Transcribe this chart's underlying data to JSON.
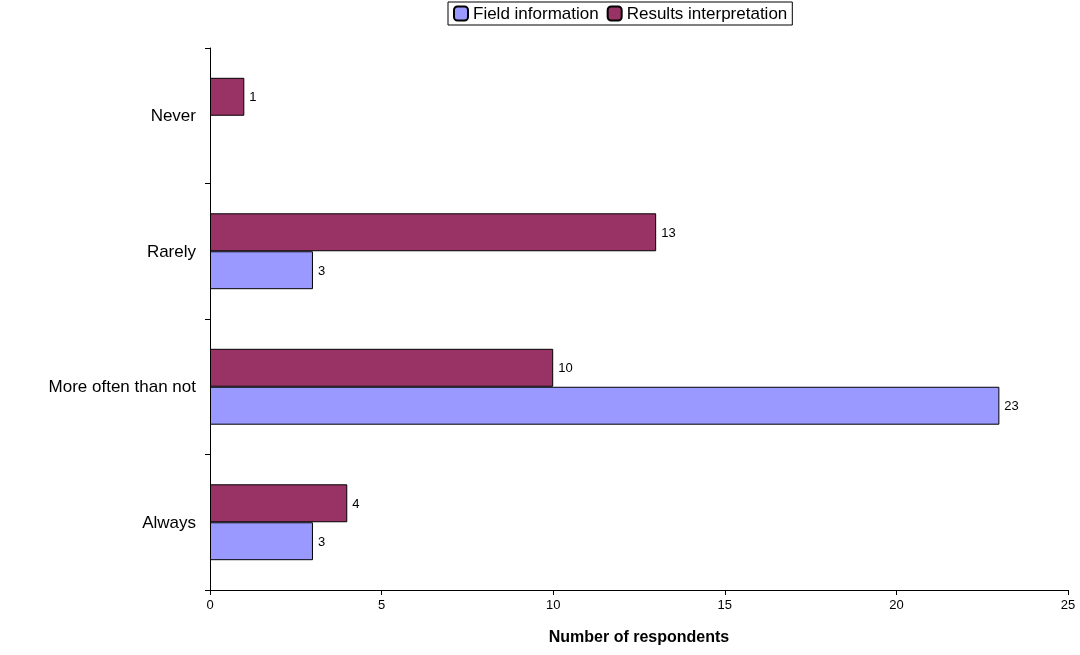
{
  "chart_data": {
    "type": "bar",
    "orientation": "horizontal",
    "xlabel": "Number of respondents",
    "categories": [
      "Never",
      "Rarely",
      "More often than not",
      "Always"
    ],
    "series": [
      {
        "name": "Field information",
        "color": "#9999ff",
        "values": [
          null,
          3,
          23,
          3
        ]
      },
      {
        "name": "Results interpretation",
        "color": "#993366",
        "values": [
          1,
          13,
          10,
          4
        ]
      }
    ],
    "xlim": [
      0,
      25
    ],
    "xticks": [
      0,
      5,
      10,
      15,
      20,
      25
    ],
    "grid": false,
    "legend": "top",
    "data_labels": true
  }
}
